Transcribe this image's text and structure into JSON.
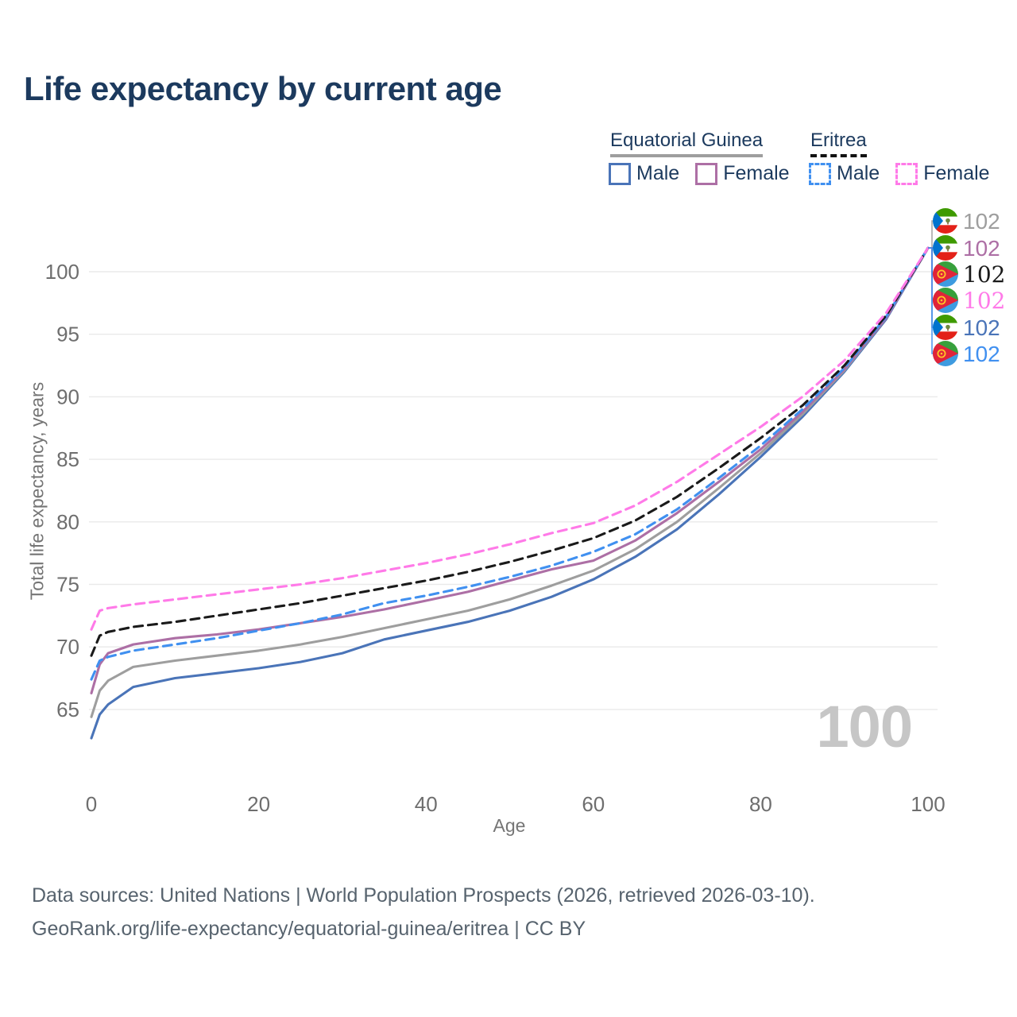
{
  "title": "Life expectancy by current age",
  "legend": {
    "groups": [
      {
        "label": "Equatorial Guinea",
        "line_style": "solid",
        "underline_color": "#9e9e9e"
      },
      {
        "label": "Eritrea",
        "line_style": "dashed",
        "underline_color": "#111111"
      }
    ],
    "items": [
      {
        "label": "Male",
        "country": "Equatorial Guinea",
        "color": "#4a74b8",
        "dashed": false
      },
      {
        "label": "Female",
        "country": "Equatorial Guinea",
        "color": "#ad6fa5",
        "dashed": false
      },
      {
        "label": "Male",
        "country": "Eritrea",
        "color": "#4090f0",
        "dashed": true
      },
      {
        "label": "Female",
        "country": "Eritrea",
        "color": "#ff7ae8",
        "dashed": true
      }
    ]
  },
  "chart_data": {
    "type": "line",
    "title": "Life expectancy by current age",
    "xlabel": "Age",
    "ylabel": "Total life expectancy, years",
    "x_ticks": [
      0,
      20,
      40,
      60,
      80,
      100
    ],
    "y_ticks": [
      65,
      70,
      75,
      80,
      85,
      90,
      95,
      100
    ],
    "xlim": [
      0,
      100
    ],
    "ylim": [
      62,
      103
    ],
    "grid": "horizontal-only",
    "legend_position": "top-right",
    "watermark": "100",
    "x": [
      0,
      1,
      2,
      5,
      10,
      15,
      20,
      25,
      30,
      35,
      40,
      45,
      50,
      55,
      60,
      65,
      70,
      75,
      80,
      85,
      90,
      95,
      100
    ],
    "series": [
      {
        "name": "Equatorial Guinea Male",
        "color": "#4a74b8",
        "dashed": false,
        "values": [
          62.7,
          64.6,
          65.4,
          66.8,
          67.5,
          67.9,
          68.3,
          68.8,
          69.5,
          70.6,
          71.3,
          72.0,
          72.9,
          74.0,
          75.4,
          77.2,
          79.4,
          82.2,
          85.2,
          88.4,
          92.0,
          96.2,
          101.9
        ]
      },
      {
        "name": "Equatorial Guinea (both sexes)",
        "color": "#9e9e9e",
        "dashed": false,
        "values": [
          64.4,
          66.5,
          67.3,
          68.4,
          68.9,
          69.3,
          69.7,
          70.2,
          70.8,
          71.5,
          72.2,
          72.9,
          73.8,
          74.9,
          76.1,
          77.8,
          80.0,
          82.7,
          85.5,
          88.6,
          92.1,
          96.3,
          101.9
        ]
      },
      {
        "name": "Equatorial Guinea Female",
        "color": "#ad6fa5",
        "dashed": false,
        "values": [
          66.3,
          68.6,
          69.5,
          70.2,
          70.7,
          71.0,
          71.4,
          71.9,
          72.4,
          73.0,
          73.7,
          74.4,
          75.3,
          76.2,
          76.9,
          78.5,
          80.7,
          83.2,
          85.8,
          88.8,
          92.2,
          96.3,
          101.9
        ]
      },
      {
        "name": "Eritrea Male",
        "color": "#4090f0",
        "dashed": true,
        "values": [
          67.4,
          68.9,
          69.2,
          69.7,
          70.2,
          70.7,
          71.3,
          71.9,
          72.6,
          73.5,
          74.1,
          74.8,
          75.6,
          76.5,
          77.6,
          79.0,
          81.0,
          83.5,
          86.1,
          89.0,
          92.3,
          96.4,
          101.9
        ]
      },
      {
        "name": "Eritrea (both sexes)",
        "color": "#1a1a1a",
        "dashed": true,
        "values": [
          69.3,
          70.9,
          71.2,
          71.6,
          72.0,
          72.5,
          73.0,
          73.5,
          74.1,
          74.7,
          75.3,
          76.0,
          76.8,
          77.7,
          78.7,
          80.1,
          82.0,
          84.3,
          86.7,
          89.3,
          92.5,
          96.5,
          101.9
        ]
      },
      {
        "name": "Eritrea Female",
        "color": "#ff7ae8",
        "dashed": true,
        "values": [
          71.4,
          72.9,
          73.1,
          73.4,
          73.8,
          74.2,
          74.6,
          75.0,
          75.5,
          76.1,
          76.7,
          77.4,
          78.2,
          79.1,
          79.9,
          81.3,
          83.2,
          85.4,
          87.6,
          90.0,
          92.9,
          96.7,
          101.9
        ]
      }
    ],
    "end_labels": [
      {
        "value": "102",
        "color": "#9e9e9e",
        "flag": "gq",
        "serif": false
      },
      {
        "value": "102",
        "color": "#ad6fa5",
        "flag": "gq",
        "serif": false
      },
      {
        "value": "102",
        "color": "#1a1a1a",
        "flag": "er",
        "serif": true
      },
      {
        "value": "102",
        "color": "#ff7ae8",
        "flag": "er",
        "serif": true
      },
      {
        "value": "102",
        "color": "#4a74b8",
        "flag": "gq",
        "serif": false
      },
      {
        "value": "102",
        "color": "#4090f0",
        "flag": "er",
        "serif": false
      }
    ]
  },
  "footer": {
    "line1": "Data sources: United Nations | World Population Prospects (2026, retrieved 2026-03-10).",
    "line2": "GeoRank.org/life-expectancy/equatorial-guinea/eritrea | CC BY"
  }
}
